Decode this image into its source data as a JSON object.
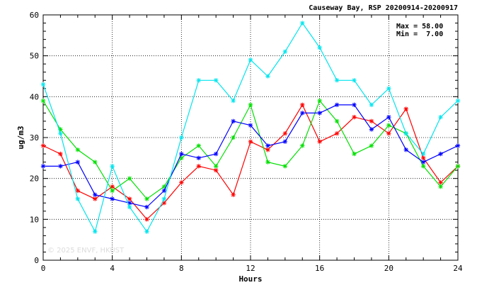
{
  "chart_data": {
    "type": "line",
    "title": "Causeway Bay, RSP 20200914-20200917",
    "xlabel": "Hours",
    "ylabel": "ug/m3",
    "xlim": [
      0,
      24
    ],
    "ylim": [
      0,
      60
    ],
    "x_ticks": [
      0,
      4,
      8,
      12,
      16,
      20,
      24
    ],
    "y_ticks": [
      0,
      10,
      20,
      30,
      40,
      50,
      60
    ],
    "grid": true,
    "x": [
      0,
      1,
      2,
      3,
      4,
      5,
      6,
      7,
      8,
      9,
      10,
      11,
      12,
      13,
      14,
      15,
      16,
      17,
      18,
      19,
      20,
      21,
      22,
      23,
      24
    ],
    "stats": {
      "max_label": "Max = 58.00",
      "min_label": "Min =  7.00"
    },
    "watermark": "© 2025  ENVF, HKUST",
    "series": [
      {
        "color": "#ff0000",
        "values": [
          28,
          26,
          17,
          15,
          18,
          15,
          10,
          14,
          19,
          23,
          22,
          16,
          29,
          27,
          31,
          38,
          29,
          31,
          35,
          34,
          31,
          37,
          25,
          19,
          23
        ]
      },
      {
        "color": "#00e000",
        "values": [
          39,
          32,
          27,
          24,
          17,
          20,
          15,
          18,
          25,
          28,
          23,
          30,
          38,
          24,
          23,
          28,
          39,
          34,
          26,
          28,
          33,
          31,
          23,
          18,
          23
        ]
      },
      {
        "color": "#0000ff",
        "values": [
          23,
          23,
          24,
          16,
          15,
          14,
          13,
          17,
          26,
          25,
          26,
          34,
          33,
          28,
          29,
          36,
          36,
          38,
          38,
          32,
          35,
          27,
          24,
          26,
          28
        ]
      },
      {
        "color": "#00e5ee",
        "values": [
          43,
          31,
          15,
          7,
          23,
          13,
          7,
          15,
          30,
          44,
          44,
          39,
          49,
          45,
          51,
          58,
          52,
          44,
          44,
          38,
          42,
          31,
          26,
          35,
          39
        ]
      }
    ]
  }
}
